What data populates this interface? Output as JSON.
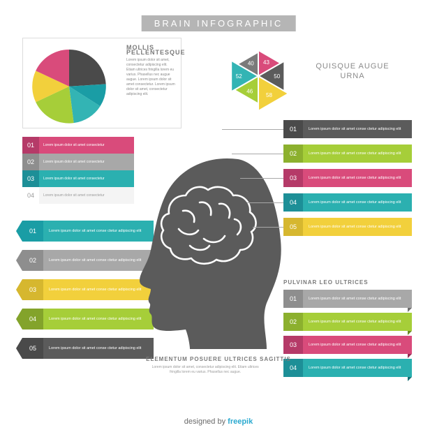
{
  "title": "BRAIN INFOGRAPHIC",
  "colors": {
    "bg": "#ffffff",
    "title_band": "#b5b5b5",
    "title_text": "#ffffff",
    "body_text": "#8a8a8a",
    "rule": "#dcdcdc",
    "credit_accent": "#2caad0"
  },
  "pie_chart": {
    "type": "pie",
    "title": "MOLLIS PELLENTESQUE",
    "body": "Lorem ipsum dolor sit amet, consectetur adipiscing elit. Etiam ultrices fringilla lorem eu varius. Phasellus nec augue augue. Lorem ipsum dolor sit amet consectetur. Lorem ipsum dolor sit amet, consectetur adipiscing elit.",
    "slices": [
      {
        "value": 24,
        "color": "#4a4a4a"
      },
      {
        "value": 10,
        "color": "#1a9da5"
      },
      {
        "value": 14,
        "color": "#33b4b4"
      },
      {
        "value": 20,
        "color": "#a6ce39"
      },
      {
        "value": 14,
        "color": "#f2d03c"
      },
      {
        "value": 18,
        "color": "#d94b7b"
      }
    ],
    "border_color": "#dcdcdc"
  },
  "hexagon_chart": {
    "type": "radial-hex",
    "title": "QUISQUE AUGUE URNA",
    "segments": [
      {
        "value": 43,
        "color": "#d94b7b"
      },
      {
        "value": 50,
        "color": "#5b5b5b"
      },
      {
        "value": 58,
        "color": "#f2d03c"
      },
      {
        "value": 46,
        "color": "#a6ce39"
      },
      {
        "value": 52,
        "color": "#33b4b4"
      },
      {
        "value": 40,
        "color": "#7a7a7a"
      }
    ],
    "gap_color": "#ffffff"
  },
  "list_a": {
    "type": "stacked-bars",
    "rows": [
      {
        "num": "01",
        "num_bg": "#b53a68",
        "bar_bg": "#d94b7b",
        "text": "Lorem ipsum dolor sit amet consectetur"
      },
      {
        "num": "02",
        "num_bg": "#8e8e8e",
        "bar_bg": "#a8a8a8",
        "text": "Lorem ipsum dolor sit amet consectetur"
      },
      {
        "num": "03",
        "num_bg": "#1d8f97",
        "bar_bg": "#2bb0b0",
        "text": "Lorem ipsum dolor sit amet consectetur"
      },
      {
        "num": "04",
        "num_bg": "#ffffff",
        "num_text": "#9a9a9a",
        "bar_bg": "#f4f4f4",
        "text": "Lorem ipsum dolor sit amet consectetur",
        "text_color": "#9a9a9a"
      }
    ]
  },
  "list_b": {
    "type": "tag-bars",
    "rows": [
      {
        "num": "01",
        "tag_bg": "#1a9da5",
        "bar_bg": "#2bb0b0",
        "text": "Lorem ipsum dolor sit amet conse ctetur adipiscing elit"
      },
      {
        "num": "02",
        "tag_bg": "#8e8e8e",
        "bar_bg": "#a8a8a8",
        "text": "Lorem ipsum dolor sit amet conse ctetur adipiscing elit"
      },
      {
        "num": "03",
        "tag_bg": "#d6b72f",
        "bar_bg": "#f2d03c",
        "text": "Lorem ipsum dolor sit amet conse ctetur adipiscing elit"
      },
      {
        "num": "04",
        "tag_bg": "#83a32b",
        "bar_bg": "#a6ce39",
        "text": "Lorem ipsum dolor sit amet conse ctetur adipiscing elit"
      },
      {
        "num": "05",
        "tag_bg": "#4a4a4a",
        "bar_bg": "#5b5b5b",
        "text": "Lorem ipsum dolor sit amet conse ctetur adipiscing elit"
      }
    ]
  },
  "list_c": {
    "type": "callout-bars",
    "rows": [
      {
        "num": "01",
        "num_bg": "#4a4a4a",
        "bar_bg": "#5b5b5b",
        "text": "Lorem ipsum dolor sit amet conse ctetur adipiscing elit",
        "line_w": 88
      },
      {
        "num": "02",
        "num_bg": "#8cb02e",
        "bar_bg": "#a6ce39",
        "text": "Lorem ipsum dolor sit amet conse ctetur adipiscing elit",
        "line_w": 74
      },
      {
        "num": "03",
        "num_bg": "#b53a68",
        "bar_bg": "#d94b7b",
        "text": "Lorem ipsum dolor sit amet conse ctetur adipiscing elit",
        "line_w": 62
      },
      {
        "num": "04",
        "num_bg": "#1d8f97",
        "bar_bg": "#2bb0b0",
        "text": "Lorem ipsum dolor sit amet conse ctetur adipiscing elit",
        "line_w": 52
      },
      {
        "num": "05",
        "num_bg": "#d6b72f",
        "bar_bg": "#f2d03c",
        "text": "Lorem ipsum dolor sit amet conse ctetur adipiscing elit",
        "line_w": 44
      }
    ]
  },
  "list_d": {
    "type": "ribbon-bars",
    "title": "PULVINAR LEO ULTRICES",
    "rows": [
      {
        "num": "01",
        "num_bg": "#8e8e8e",
        "bar_bg": "#a8a8a8",
        "fold": "#6e6e6e",
        "text": "Lorem ipsum dolor sit amet conse ctetur adipiscing elit"
      },
      {
        "num": "02",
        "num_bg": "#8cb02e",
        "bar_bg": "#a6ce39",
        "fold": "#6a8a22",
        "text": "Lorem ipsum dolor sit amet conse ctetur adipiscing elit"
      },
      {
        "num": "03",
        "num_bg": "#b53a68",
        "bar_bg": "#d94b7b",
        "fold": "#922a52",
        "text": "Lorem ipsum dolor sit amet conse ctetur adipiscing elit"
      },
      {
        "num": "04",
        "num_bg": "#1d8f97",
        "bar_bg": "#2bb0b0",
        "fold": "#157076",
        "text": "Lorem ipsum dolor sit amet conse ctetur adipiscing elit"
      }
    ]
  },
  "head_silhouette": {
    "fill": "#5b5b5b",
    "brain_stroke": "#ffffff"
  },
  "caption": {
    "title": "ELEMENTUM POSUERE ULTRICES SAGITTIS",
    "body": "Lorem ipsum dolor sit amet, consectetur adipiscing elit. Etiam ultrices fringilla lorem eu varius. Phasellus nec augue."
  },
  "credit": {
    "prefix": "designed by ",
    "brand": "freepik"
  }
}
